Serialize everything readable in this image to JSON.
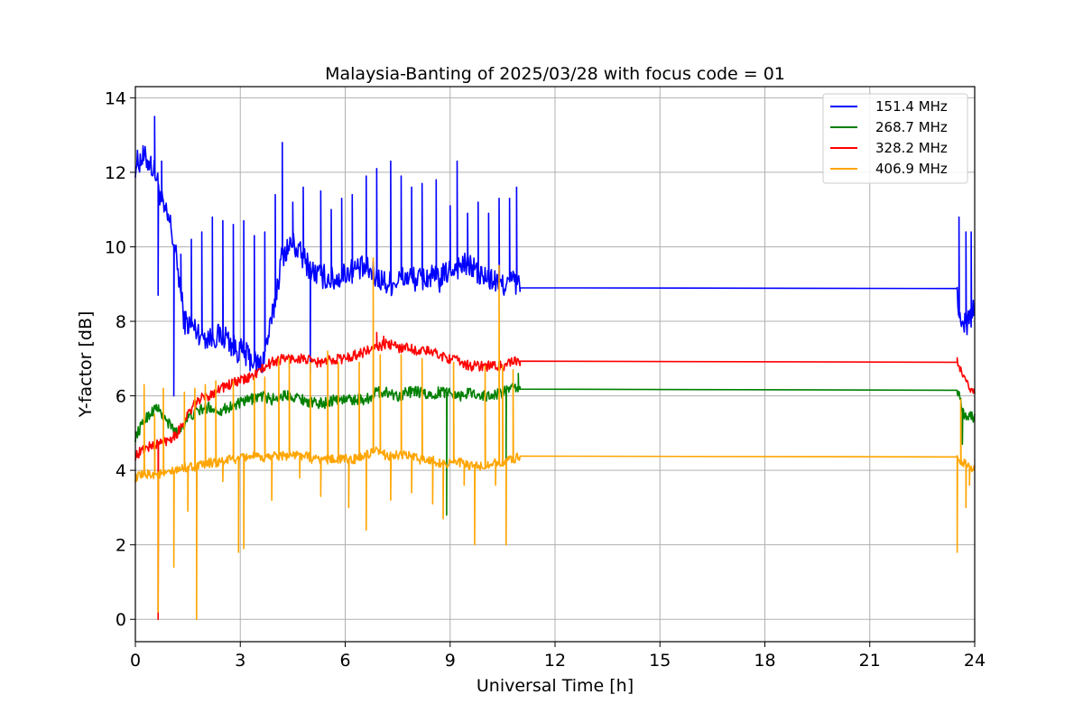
{
  "chart_data": {
    "type": "line",
    "title": "Malaysia-Banting of 2025/03/28 with focus code = 01",
    "xlabel": "Universal Time [h]",
    "ylabel": "Y-factor [dB]",
    "xlim": [
      0,
      24
    ],
    "ylim": [
      -0.6,
      14.3
    ],
    "xticks": [
      0,
      3,
      6,
      9,
      12,
      15,
      18,
      21,
      24
    ],
    "yticks": [
      0,
      2,
      4,
      6,
      8,
      10,
      12,
      14
    ],
    "grid": true,
    "legend_position": "top-right",
    "series": [
      {
        "name": "151.4 MHz",
        "color": "#0000ff",
        "points": [
          [
            0,
            12.2
          ],
          [
            0.2,
            12.4
          ],
          [
            0.4,
            12.3
          ],
          [
            0.6,
            11.9
          ],
          [
            0.8,
            11.0
          ],
          [
            1.0,
            10.6
          ],
          [
            1.2,
            9.5
          ],
          [
            1.4,
            8.0
          ],
          [
            1.7,
            7.8
          ],
          [
            2.0,
            7.6
          ],
          [
            2.3,
            7.6
          ],
          [
            2.6,
            7.6
          ],
          [
            2.8,
            7.3
          ],
          [
            3.0,
            7.2
          ],
          [
            3.3,
            7.0
          ],
          [
            3.6,
            6.8
          ],
          [
            3.9,
            8.0
          ],
          [
            4.2,
            9.8
          ],
          [
            4.5,
            10.1
          ],
          [
            4.8,
            9.7
          ],
          [
            5.1,
            9.3
          ],
          [
            5.4,
            9.2
          ],
          [
            5.7,
            9.1
          ],
          [
            6.0,
            9.3
          ],
          [
            6.3,
            9.4
          ],
          [
            6.6,
            9.4
          ],
          [
            6.9,
            9.2
          ],
          [
            7.2,
            9.0
          ],
          [
            7.5,
            9.1
          ],
          [
            7.8,
            9.2
          ],
          [
            8.1,
            9.1
          ],
          [
            8.4,
            9.2
          ],
          [
            8.7,
            9.1
          ],
          [
            9.0,
            9.4
          ],
          [
            9.3,
            9.5
          ],
          [
            9.6,
            9.5
          ],
          [
            9.9,
            9.2
          ],
          [
            10.2,
            9.1
          ],
          [
            10.5,
            9.0
          ],
          [
            10.8,
            9.1
          ],
          [
            11.0,
            8.9
          ],
          [
            23.5,
            8.88
          ],
          [
            23.6,
            7.8
          ],
          [
            23.8,
            8.0
          ],
          [
            24.0,
            8.3
          ]
        ],
        "spikes": [
          [
            0.55,
            13.5
          ],
          [
            0.65,
            8.7
          ],
          [
            0.75,
            12.3
          ],
          [
            1.1,
            6.0
          ],
          [
            1.3,
            9.8
          ],
          [
            1.6,
            10.2
          ],
          [
            1.9,
            10.4
          ],
          [
            2.2,
            10.8
          ],
          [
            2.5,
            10.7
          ],
          [
            2.8,
            10.6
          ],
          [
            3.1,
            10.7
          ],
          [
            3.4,
            10.3
          ],
          [
            3.7,
            10.4
          ],
          [
            4.0,
            11.4
          ],
          [
            4.2,
            12.8
          ],
          [
            4.5,
            11.2
          ],
          [
            4.8,
            11.6
          ],
          [
            5.0,
            6.6
          ],
          [
            5.3,
            11.5
          ],
          [
            5.6,
            11.0
          ],
          [
            5.9,
            11.3
          ],
          [
            6.2,
            11.4
          ],
          [
            6.6,
            11.9
          ],
          [
            6.9,
            12.1
          ],
          [
            7.3,
            12.3
          ],
          [
            7.6,
            11.9
          ],
          [
            7.9,
            11.6
          ],
          [
            8.2,
            11.7
          ],
          [
            8.6,
            11.8
          ],
          [
            9.0,
            11.1
          ],
          [
            9.2,
            12.3
          ],
          [
            9.5,
            10.9
          ],
          [
            9.8,
            11.2
          ],
          [
            10.1,
            10.9
          ],
          [
            10.4,
            11.3
          ],
          [
            10.7,
            11.3
          ],
          [
            10.9,
            11.6
          ],
          [
            23.55,
            10.8
          ],
          [
            23.75,
            10.4
          ],
          [
            23.9,
            10.4
          ]
        ]
      },
      {
        "name": "268.7 MHz",
        "color": "#008000",
        "points": [
          [
            0,
            4.9
          ],
          [
            0.3,
            5.4
          ],
          [
            0.6,
            5.7
          ],
          [
            0.9,
            5.3
          ],
          [
            1.2,
            5.0
          ],
          [
            1.5,
            5.4
          ],
          [
            1.8,
            5.6
          ],
          [
            2.1,
            5.7
          ],
          [
            2.4,
            5.6
          ],
          [
            2.7,
            5.7
          ],
          [
            3.0,
            5.8
          ],
          [
            3.3,
            5.9
          ],
          [
            3.6,
            6.0
          ],
          [
            3.9,
            5.9
          ],
          [
            4.2,
            6.0
          ],
          [
            4.5,
            6.0
          ],
          [
            4.8,
            5.9
          ],
          [
            5.1,
            5.8
          ],
          [
            5.4,
            5.8
          ],
          [
            5.7,
            5.9
          ],
          [
            6.0,
            5.9
          ],
          [
            6.3,
            5.9
          ],
          [
            6.6,
            5.9
          ],
          [
            6.9,
            6.1
          ],
          [
            7.2,
            6.1
          ],
          [
            7.5,
            6.0
          ],
          [
            7.8,
            6.1
          ],
          [
            8.1,
            6.1
          ],
          [
            8.4,
            6.0
          ],
          [
            8.7,
            6.1
          ],
          [
            9.0,
            6.1
          ],
          [
            9.3,
            6.0
          ],
          [
            9.6,
            6.1
          ],
          [
            9.9,
            6.0
          ],
          [
            10.2,
            6.0
          ],
          [
            10.5,
            6.1
          ],
          [
            10.8,
            6.2
          ],
          [
            11.0,
            6.18
          ],
          [
            23.5,
            6.15
          ],
          [
            23.7,
            5.5
          ],
          [
            24.0,
            5.4
          ]
        ],
        "spikes": [
          [
            8.9,
            2.8
          ],
          [
            10.6,
            4.3
          ],
          [
            10.95,
            6.6
          ],
          [
            23.65,
            4.7
          ]
        ]
      },
      {
        "name": "328.2 MHz",
        "color": "#ff0000",
        "points": [
          [
            0,
            4.4
          ],
          [
            0.3,
            4.6
          ],
          [
            0.6,
            4.7
          ],
          [
            0.9,
            4.8
          ],
          [
            1.2,
            5.0
          ],
          [
            1.5,
            5.5
          ],
          [
            1.8,
            5.9
          ],
          [
            2.1,
            6.0
          ],
          [
            2.4,
            6.2
          ],
          [
            2.7,
            6.3
          ],
          [
            3.0,
            6.4
          ],
          [
            3.3,
            6.5
          ],
          [
            3.6,
            6.7
          ],
          [
            3.9,
            6.9
          ],
          [
            4.2,
            7.0
          ],
          [
            4.5,
            7.0
          ],
          [
            4.8,
            7.0
          ],
          [
            5.1,
            6.9
          ],
          [
            5.4,
            6.9
          ],
          [
            5.7,
            7.0
          ],
          [
            6.0,
            7.0
          ],
          [
            6.3,
            7.1
          ],
          [
            6.6,
            7.2
          ],
          [
            6.9,
            7.3
          ],
          [
            7.2,
            7.4
          ],
          [
            7.5,
            7.3
          ],
          [
            7.8,
            7.3
          ],
          [
            8.1,
            7.2
          ],
          [
            8.4,
            7.2
          ],
          [
            8.7,
            7.1
          ],
          [
            9.0,
            7.0
          ],
          [
            9.3,
            6.9
          ],
          [
            9.6,
            6.8
          ],
          [
            9.9,
            6.8
          ],
          [
            10.2,
            6.8
          ],
          [
            10.5,
            6.8
          ],
          [
            10.8,
            6.9
          ],
          [
            11.0,
            6.93
          ],
          [
            23.5,
            6.9
          ],
          [
            23.7,
            6.4
          ],
          [
            24.0,
            6.1
          ]
        ],
        "spikes": [
          [
            0.65,
            0.0
          ],
          [
            6.9,
            7.7
          ],
          [
            7.1,
            7.6
          ]
        ]
      },
      {
        "name": "406.9 MHz",
        "color": "#ffa500",
        "points": [
          [
            0,
            3.8
          ],
          [
            0.3,
            3.9
          ],
          [
            0.6,
            3.9
          ],
          [
            0.9,
            3.9
          ],
          [
            1.2,
            4.0
          ],
          [
            1.5,
            4.1
          ],
          [
            1.8,
            4.1
          ],
          [
            2.1,
            4.2
          ],
          [
            2.4,
            4.2
          ],
          [
            2.7,
            4.3
          ],
          [
            3.0,
            4.3
          ],
          [
            3.3,
            4.4
          ],
          [
            3.6,
            4.3
          ],
          [
            3.9,
            4.4
          ],
          [
            4.2,
            4.4
          ],
          [
            4.5,
            4.4
          ],
          [
            4.8,
            4.4
          ],
          [
            5.1,
            4.3
          ],
          [
            5.4,
            4.3
          ],
          [
            5.7,
            4.3
          ],
          [
            6.0,
            4.3
          ],
          [
            6.3,
            4.3
          ],
          [
            6.6,
            4.4
          ],
          [
            6.9,
            4.5
          ],
          [
            7.2,
            4.4
          ],
          [
            7.5,
            4.4
          ],
          [
            7.8,
            4.4
          ],
          [
            8.1,
            4.3
          ],
          [
            8.4,
            4.3
          ],
          [
            8.7,
            4.2
          ],
          [
            9.0,
            4.2
          ],
          [
            9.3,
            4.2
          ],
          [
            9.6,
            4.1
          ],
          [
            9.9,
            4.1
          ],
          [
            10.2,
            4.2
          ],
          [
            10.5,
            4.2
          ],
          [
            10.8,
            4.3
          ],
          [
            11.0,
            4.38
          ],
          [
            23.5,
            4.36
          ],
          [
            23.7,
            4.2
          ],
          [
            24.0,
            4.0
          ]
        ],
        "spikes": [
          [
            0.25,
            6.3
          ],
          [
            0.55,
            5.5
          ],
          [
            0.65,
            0.2
          ],
          [
            0.8,
            6.2
          ],
          [
            1.1,
            1.4
          ],
          [
            1.4,
            6.1
          ],
          [
            1.5,
            2.9
          ],
          [
            1.7,
            6.2
          ],
          [
            1.75,
            0.0
          ],
          [
            2.0,
            6.3
          ],
          [
            2.3,
            6.4
          ],
          [
            2.5,
            3.7
          ],
          [
            2.8,
            6.4
          ],
          [
            2.95,
            1.8
          ],
          [
            3.1,
            1.9
          ],
          [
            3.4,
            6.5
          ],
          [
            3.7,
            6.5
          ],
          [
            3.9,
            3.2
          ],
          [
            4.1,
            7.0
          ],
          [
            4.4,
            7.0
          ],
          [
            4.7,
            3.8
          ],
          [
            5.0,
            6.9
          ],
          [
            5.3,
            3.3
          ],
          [
            5.5,
            7.2
          ],
          [
            5.8,
            6.9
          ],
          [
            6.1,
            3.0
          ],
          [
            6.4,
            6.9
          ],
          [
            6.6,
            2.4
          ],
          [
            6.8,
            9.7
          ],
          [
            7.0,
            7.1
          ],
          [
            7.3,
            3.2
          ],
          [
            7.6,
            7.1
          ],
          [
            7.9,
            3.4
          ],
          [
            8.2,
            7.0
          ],
          [
            8.5,
            3.1
          ],
          [
            8.8,
            2.7
          ],
          [
            9.1,
            6.9
          ],
          [
            9.4,
            3.6
          ],
          [
            9.7,
            2.0
          ],
          [
            10.0,
            6.8
          ],
          [
            10.3,
            3.6
          ],
          [
            10.4,
            9.5
          ],
          [
            10.5,
            6.8
          ],
          [
            10.6,
            2.0
          ],
          [
            10.8,
            6.7
          ],
          [
            23.5,
            1.8
          ],
          [
            23.6,
            5.9
          ],
          [
            23.75,
            3.0
          ],
          [
            23.85,
            3.6
          ]
        ]
      }
    ]
  }
}
